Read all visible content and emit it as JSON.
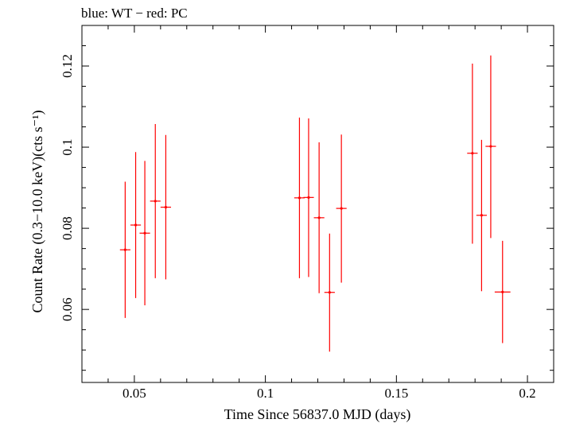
{
  "chart_data": {
    "type": "scatter",
    "title": "blue: WT − red: PC",
    "xlabel": "Time Since 56837.0 MJD (days)",
    "ylabel": "Count Rate (0.3−10.0 keV)(cts s⁻¹)",
    "xlim": [
      0.03,
      0.21
    ],
    "ylim": [
      0.042,
      0.13
    ],
    "x_ticks": [
      0.05,
      0.1,
      0.15,
      0.2
    ],
    "x_tick_labels": [
      "0.05",
      "0.1",
      "0.15",
      "0.2"
    ],
    "y_ticks": [
      0.06,
      0.08,
      0.1,
      0.12
    ],
    "y_tick_labels": [
      "0.06",
      "0.08",
      "0.1",
      "0.12"
    ],
    "grid": false,
    "series": [
      {
        "color": "#ff0000",
        "points": [
          {
            "x": 0.0465,
            "y": 0.0747,
            "xerr": 0.002,
            "ylo": 0.0579,
            "yhi": 0.0915
          },
          {
            "x": 0.0505,
            "y": 0.0808,
            "xerr": 0.002,
            "ylo": 0.0628,
            "yhi": 0.0988
          },
          {
            "x": 0.054,
            "y": 0.0788,
            "xerr": 0.002,
            "ylo": 0.061,
            "yhi": 0.0966
          },
          {
            "x": 0.058,
            "y": 0.0867,
            "xerr": 0.002,
            "ylo": 0.0677,
            "yhi": 0.1057
          },
          {
            "x": 0.062,
            "y": 0.0852,
            "xerr": 0.002,
            "ylo": 0.0674,
            "yhi": 0.103
          },
          {
            "x": 0.113,
            "y": 0.0875,
            "xerr": 0.002,
            "ylo": 0.0677,
            "yhi": 0.1073
          },
          {
            "x": 0.1165,
            "y": 0.0876,
            "xerr": 0.002,
            "ylo": 0.068,
            "yhi": 0.1071
          },
          {
            "x": 0.1205,
            "y": 0.0826,
            "xerr": 0.002,
            "ylo": 0.064,
            "yhi": 0.1012
          },
          {
            "x": 0.1245,
            "y": 0.0642,
            "xerr": 0.002,
            "ylo": 0.0496,
            "yhi": 0.0787
          },
          {
            "x": 0.129,
            "y": 0.0849,
            "xerr": 0.002,
            "ylo": 0.0666,
            "yhi": 0.1031
          },
          {
            "x": 0.179,
            "y": 0.0985,
            "xerr": 0.002,
            "ylo": 0.0762,
            "yhi": 0.1206
          },
          {
            "x": 0.1825,
            "y": 0.0832,
            "xerr": 0.002,
            "ylo": 0.0645,
            "yhi": 0.1018
          },
          {
            "x": 0.186,
            "y": 0.1002,
            "xerr": 0.002,
            "ylo": 0.0776,
            "yhi": 0.1226
          },
          {
            "x": 0.1905,
            "y": 0.0643,
            "xerr": 0.003,
            "ylo": 0.0517,
            "yhi": 0.0769
          }
        ]
      }
    ]
  }
}
